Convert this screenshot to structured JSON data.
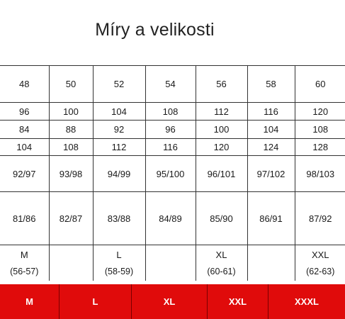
{
  "title": "Míry a velikosti",
  "table": {
    "rows": [
      [
        "48",
        "50",
        "52",
        "54",
        "56",
        "58",
        "60"
      ],
      [
        "96",
        "100",
        "104",
        "108",
        "112",
        "116",
        "120"
      ],
      [
        "84",
        "88",
        "92",
        "96",
        "100",
        "104",
        "108"
      ],
      [
        "104",
        "108",
        "112",
        "116",
        "120",
        "124",
        "128"
      ],
      [
        "92/97",
        "93/98",
        "94/99",
        "95/100",
        "96/101",
        "97/102",
        "98/103"
      ],
      [
        "81/86",
        "82/87",
        "83/88",
        "84/89",
        "85/90",
        "86/91",
        "87/92"
      ]
    ],
    "letter_row": [
      {
        "size": "M",
        "range": "(56-57)"
      },
      {
        "size": "",
        "range": ""
      },
      {
        "size": "L",
        "range": "(58-59)"
      },
      {
        "size": "",
        "range": ""
      },
      {
        "size": "XL",
        "range": "(60-61)"
      },
      {
        "size": "",
        "range": ""
      },
      {
        "size": "XXL",
        "range": "(62-63)"
      }
    ]
  },
  "size_bar": [
    "M",
    "L",
    "XL",
    "XXL",
    "XXXL"
  ],
  "colors": {
    "bar_red": "#e00b0b",
    "bar_text": "#ffffff",
    "grid_line": "#333333"
  }
}
